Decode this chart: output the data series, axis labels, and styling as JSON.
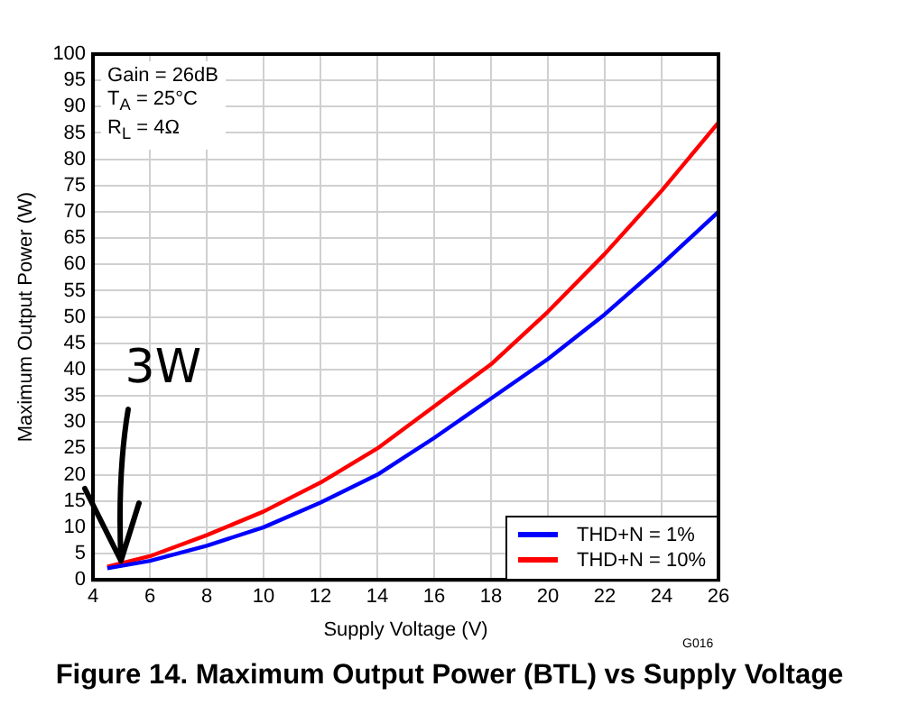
{
  "chart_data": {
    "type": "line",
    "title": "Figure 14. Maximum Output Power (BTL) vs Supply Voltage",
    "xlabel": "Supply Voltage (V)",
    "ylabel": "Maximum Output Power (W)",
    "annotations": [
      "Gain = 26dB",
      "T$_{A}$ = 25°C",
      "R$_{L}$ = 4Ω",
      {
        "text": "3W",
        "x": 5,
        "y": 3
      },
      "G016"
    ],
    "x": [
      4.5,
      6,
      8,
      10,
      12,
      14,
      16,
      18,
      20,
      22,
      24,
      26
    ],
    "series": [
      {
        "name": "THD+N = 1%",
        "color": "#0000ff",
        "values": [
          2.2,
          3.6,
          6.5,
          10,
          14.7,
          20,
          27,
          34.5,
          42,
          50.5,
          60,
          70
        ]
      },
      {
        "name": "THD+N = 10%",
        "color": "#ff0000",
        "values": [
          2.5,
          4.5,
          8.5,
          13,
          18.5,
          25,
          33,
          41,
          51,
          62,
          74,
          87
        ]
      }
    ],
    "xlim": [
      4,
      26
    ],
    "xticks": [
      4,
      6,
      8,
      10,
      12,
      14,
      16,
      18,
      20,
      22,
      24,
      26
    ],
    "ylim": [
      0,
      100
    ],
    "yticks": [
      0,
      5,
      10,
      15,
      20,
      25,
      30,
      35,
      40,
      45,
      50,
      55,
      60,
      65,
      70,
      75,
      80,
      85,
      90,
      95,
      100
    ],
    "grid": true,
    "legend": "bottom right",
    "marker": "none",
    "line_style": "solid"
  }
}
